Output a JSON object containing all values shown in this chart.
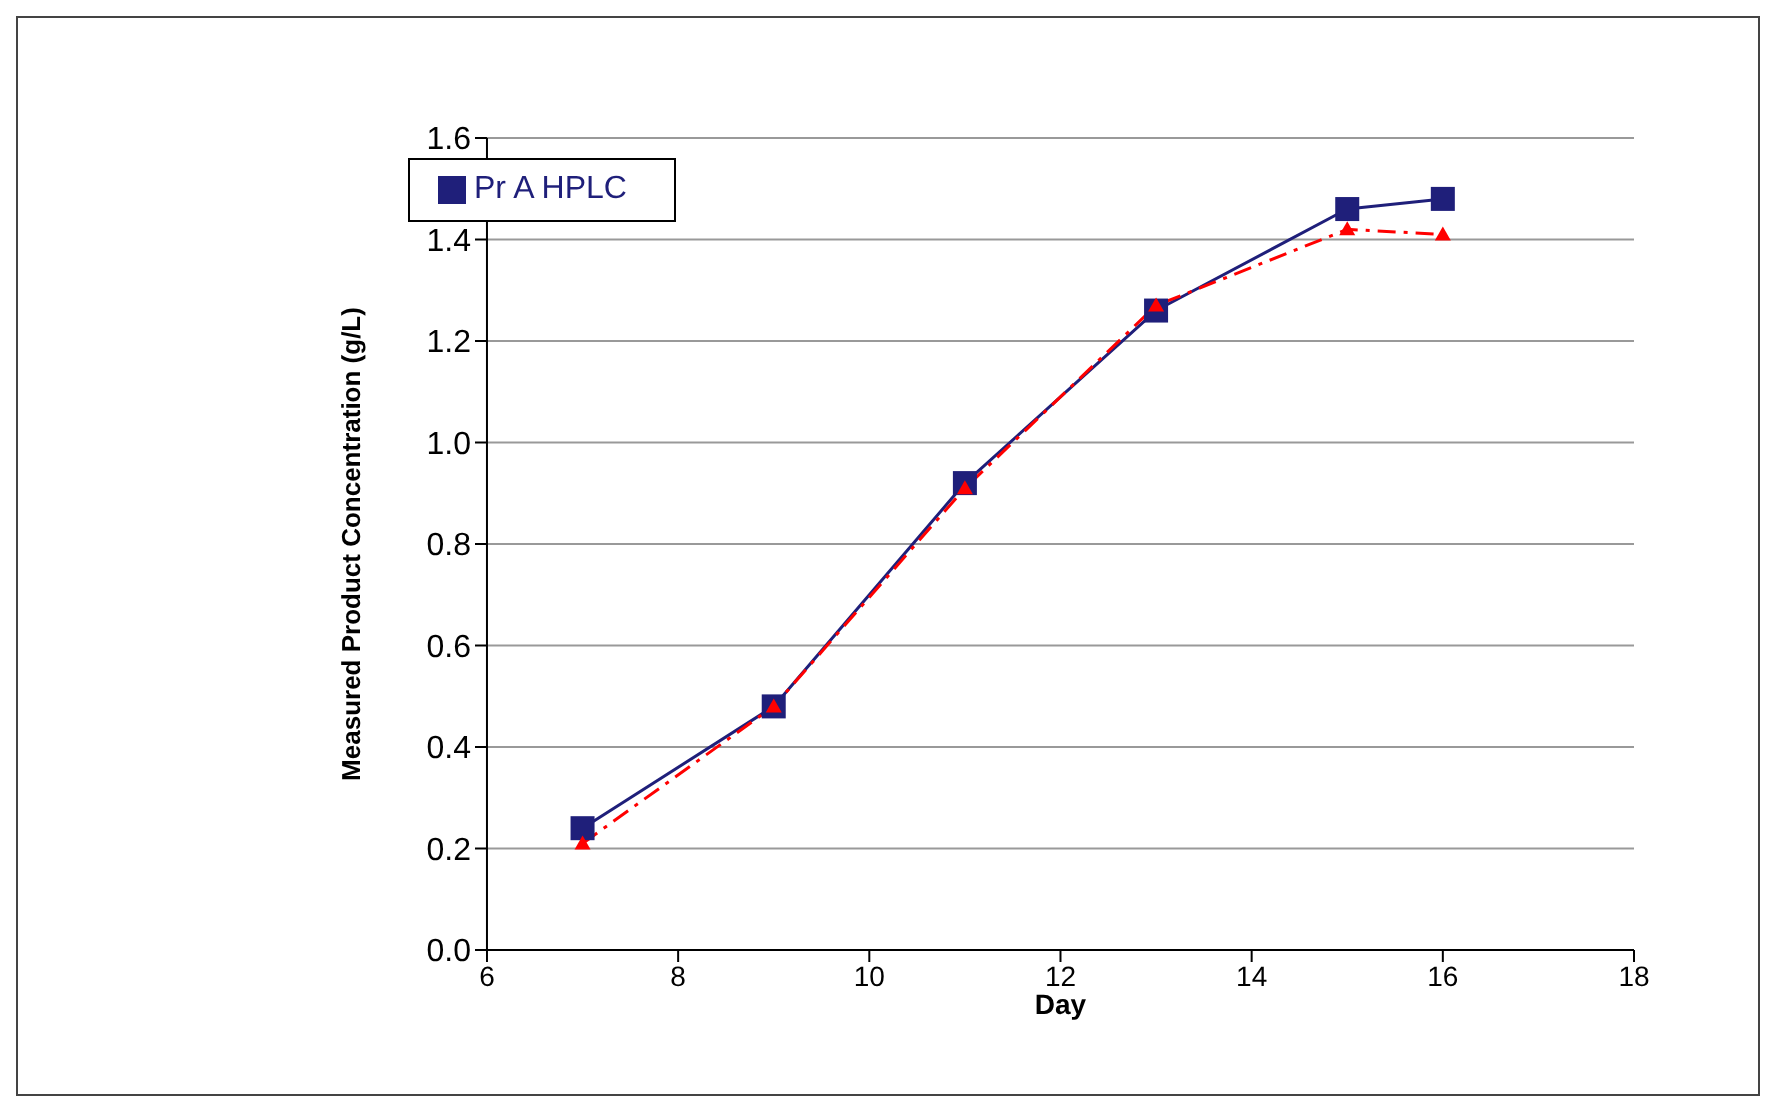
{
  "chart_data": {
    "type": "line",
    "xlabel": "Day",
    "ylabel": "Measured Product Concentration (g/L)",
    "xlim": [
      6,
      18
    ],
    "xticks": [
      6,
      8,
      10,
      12,
      14,
      16,
      18
    ],
    "ylim": [
      0,
      1.6
    ],
    "yticks": [
      {
        "value": 0,
        "label": "0.0"
      },
      {
        "value": 0.2,
        "label": "0.2"
      },
      {
        "value": 0.4,
        "label": "0.4"
      },
      {
        "value": 0.6,
        "label": "0.6"
      },
      {
        "value": 0.8,
        "label": "0.8"
      },
      {
        "value": 1,
        "label": "1.0"
      },
      {
        "value": 1.2,
        "label": "1.2"
      },
      {
        "value": 1.4,
        "label": "1.4"
      },
      {
        "value": 1.6,
        "label": "1.6"
      }
    ],
    "grid": "y",
    "legend": "top left",
    "x": [
      7,
      9,
      11,
      13,
      15,
      16
    ],
    "series": [
      {
        "name": "Pr A HPLC",
        "color": "#1f1f7a",
        "values": [
          0.24,
          0.48,
          0.92,
          1.26,
          1.46,
          1.48
        ],
        "marker": "square",
        "line_style": "solid"
      },
      {
        "color": "#ff0000",
        "values": [
          0.21,
          0.48,
          0.91,
          1.27,
          1.42,
          1.41
        ],
        "marker": "triangle",
        "line_style": "dashed"
      }
    ]
  }
}
